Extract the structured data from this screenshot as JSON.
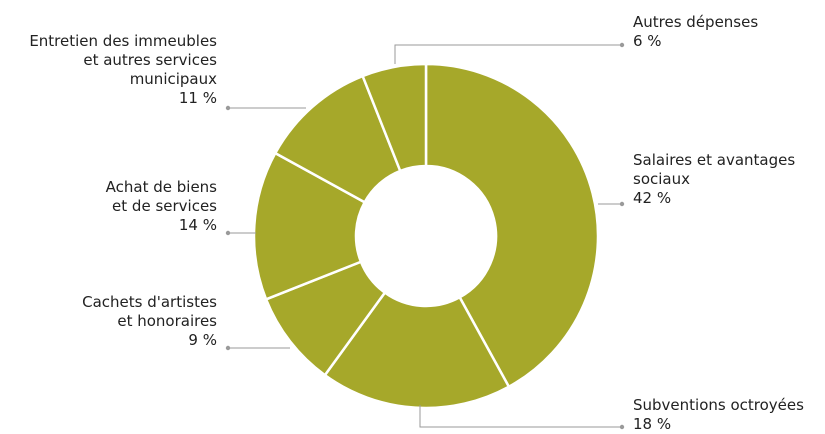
{
  "chart_data": {
    "type": "pie",
    "donut": true,
    "slice_color": "#a6a82a",
    "separator_color": "#ffffff",
    "leader_color": "#9a9a9a",
    "slices": [
      {
        "label_lines": [
          "Salaires et avantages",
          "sociaux"
        ],
        "value": 42,
        "value_label": "42 %"
      },
      {
        "label_lines": [
          "Subventions octroyées"
        ],
        "value": 18,
        "value_label": "18 %"
      },
      {
        "label_lines": [
          "Cachets d'artistes",
          "et honoraires"
        ],
        "value": 9,
        "value_label": "9 %"
      },
      {
        "label_lines": [
          "Achat de biens",
          "et de services"
        ],
        "value": 14,
        "value_label": "14 %"
      },
      {
        "label_lines": [
          "Entretien des immeubles",
          "et autres services",
          "municipaux"
        ],
        "value": 11,
        "value_label": "11 %"
      },
      {
        "label_lines": [
          "Autres dépenses"
        ],
        "value": 6,
        "value_label": "6 %"
      }
    ]
  }
}
